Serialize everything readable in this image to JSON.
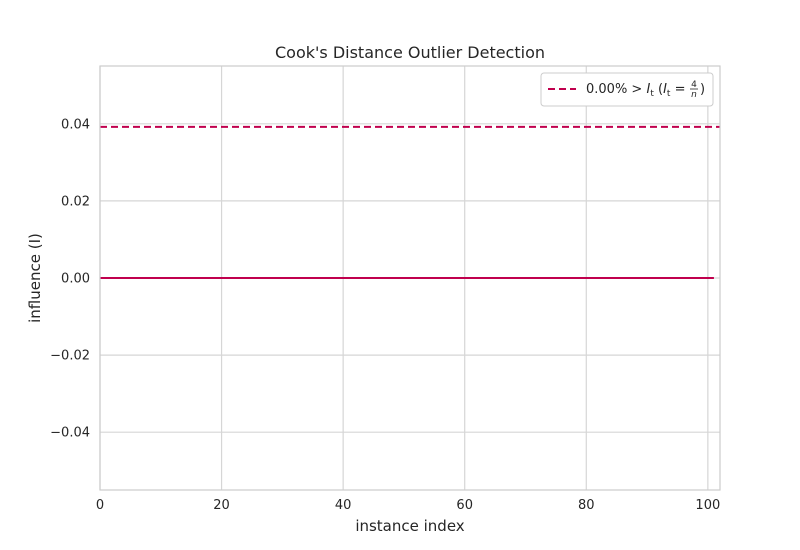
{
  "chart_data": {
    "type": "line",
    "title": "Cook's Distance Outlier Detection",
    "xlabel": "instance index",
    "ylabel": "influence (I)",
    "xlim": [
      0,
      102
    ],
    "ylim": [
      -0.055,
      0.055
    ],
    "xticks": [
      0,
      20,
      40,
      60,
      80,
      100
    ],
    "yticks": [
      -0.04,
      -0.02,
      0.0,
      0.02,
      0.04
    ],
    "ytick_labels": [
      "−0.04",
      "−0.02",
      "0.00",
      "0.02",
      "0.04"
    ],
    "grid": true,
    "legend_position": "top-right",
    "colors": {
      "stem": "#c0004d",
      "threshold": "#c0004d",
      "grid": "#d6d6d6",
      "frame": "#cccccc"
    },
    "series": [
      {
        "type": "stem",
        "x_start": 0,
        "x_end": 101,
        "values": 0.0
      }
    ],
    "threshold": {
      "value": 0.0392,
      "style": "dashed",
      "legend_label": "0.00% > I_t (I_t = 4/n)",
      "legend_parts": {
        "pct": "0.00% > ",
        "it": "I",
        "it_sub": "t",
        "open": " (",
        "eq": " = ",
        "num": "4",
        "den": "n",
        "close": ")"
      }
    }
  }
}
